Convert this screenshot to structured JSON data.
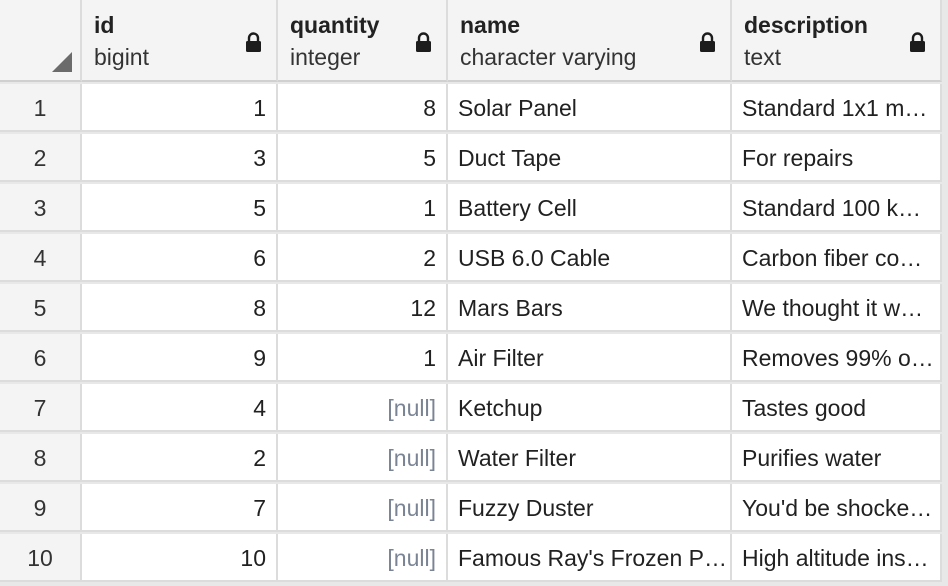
{
  "columns": [
    {
      "name": "id",
      "type": "bigint"
    },
    {
      "name": "quantity",
      "type": "integer"
    },
    {
      "name": "name",
      "type": "character varying"
    },
    {
      "name": "description",
      "type": "text"
    }
  ],
  "rows": [
    {
      "num": "1",
      "id": "1",
      "quantity": "8",
      "name": "Solar Panel",
      "description": "Standard 1x1 m…"
    },
    {
      "num": "2",
      "id": "3",
      "quantity": "5",
      "name": "Duct Tape",
      "description": "For repairs"
    },
    {
      "num": "3",
      "id": "5",
      "quantity": "1",
      "name": "Battery Cell",
      "description": "Standard 100 k…"
    },
    {
      "num": "4",
      "id": "6",
      "quantity": "2",
      "name": "USB 6.0 Cable",
      "description": "Carbon fiber co…"
    },
    {
      "num": "5",
      "id": "8",
      "quantity": "12",
      "name": "Mars Bars",
      "description": "We thought it w…"
    },
    {
      "num": "6",
      "id": "9",
      "quantity": "1",
      "name": "Air Filter",
      "description": "Removes 99% o…"
    },
    {
      "num": "7",
      "id": "4",
      "quantity": "[null]",
      "name": "Ketchup",
      "description": "Tastes good"
    },
    {
      "num": "8",
      "id": "2",
      "quantity": "[null]",
      "name": "Water Filter",
      "description": "Purifies water"
    },
    {
      "num": "9",
      "id": "7",
      "quantity": "[null]",
      "name": "Fuzzy Duster",
      "description": "You'd be shocke…"
    },
    {
      "num": "10",
      "id": "10",
      "quantity": "[null]",
      "name": "Famous Ray's Frozen P…",
      "description": "High altitude ins…"
    }
  ],
  "icons": {
    "lock": "lock-icon",
    "corner": "select-all-triangle-icon"
  },
  "colors": {
    "null_text": "#7a8494",
    "header_bg": "#f4f4f4",
    "grid_line": "#dcdcdc"
  }
}
